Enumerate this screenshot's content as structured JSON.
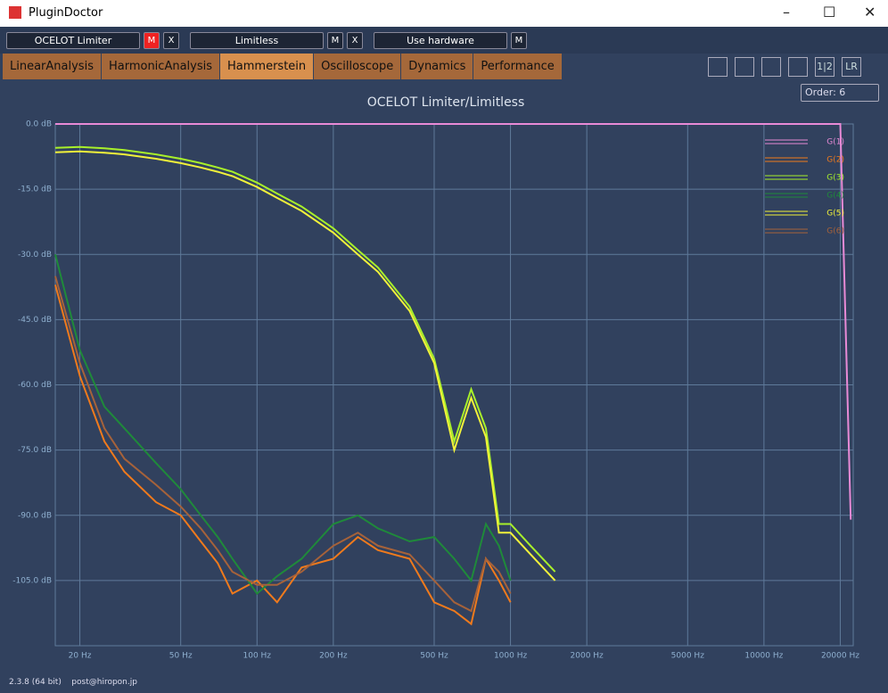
{
  "window": {
    "title": "PluginDoctor"
  },
  "toolbar": [
    {
      "label": "OCELOT Limiter",
      "buttons": [
        "M",
        "X"
      ]
    },
    {
      "label": "Limitless",
      "buttons": [
        "M",
        "X"
      ]
    },
    {
      "label": "Use hardware",
      "buttons": [
        "M"
      ]
    }
  ],
  "tabs": [
    "LinearAnalysis",
    "HarmonicAnalysis",
    "Hammerstein",
    "Oscilloscope",
    "Dynamics",
    "Performance"
  ],
  "icons": [
    "1|2",
    "LR"
  ],
  "order": "Order: 6",
  "footer": {
    "version": "2.3.8 (64 bit)",
    "email": "post@hiropon.jp"
  },
  "chart_data": {
    "type": "line",
    "title": "OCELOT Limiter/Limitless",
    "xscale": "log",
    "grid": true,
    "legend": "upper right",
    "xlim": [
      16,
      22500
    ],
    "ylim": [
      -120,
      0
    ],
    "xticks": [
      {
        "value": 20,
        "label": "20 Hz"
      },
      {
        "value": 50,
        "label": "50 Hz"
      },
      {
        "value": 100,
        "label": "100 Hz"
      },
      {
        "value": 200,
        "label": "200 Hz"
      },
      {
        "value": 500,
        "label": "500 Hz"
      },
      {
        "value": 1000,
        "label": "1000 Hz"
      },
      {
        "value": 2000,
        "label": "2000 Hz"
      },
      {
        "value": 5000,
        "label": "5000 Hz"
      },
      {
        "value": 10000,
        "label": "10000 Hz"
      },
      {
        "value": 20000,
        "label": "20000 Hz"
      }
    ],
    "yticks": [
      {
        "value": 0,
        "label": "0.0 dB"
      },
      {
        "value": -15,
        "label": "-15.0 dB"
      },
      {
        "value": -30,
        "label": "-30.0 dB"
      },
      {
        "value": -45,
        "label": "-45.0 dB"
      },
      {
        "value": -60,
        "label": "-60.0 dB"
      },
      {
        "value": -75,
        "label": "-75.0 dB"
      },
      {
        "value": -90,
        "label": "-90.0 dB"
      },
      {
        "value": -105,
        "label": "-105.0 dB"
      }
    ],
    "x": [
      16,
      20,
      25,
      30,
      40,
      50,
      60,
      70,
      80,
      100,
      120,
      150,
      200,
      250,
      300,
      400,
      500,
      600,
      700,
      800,
      900,
      1000,
      1200,
      1500,
      2000,
      3000,
      5000,
      10000,
      20000,
      22000
    ],
    "series": [
      {
        "name": "G(1)",
        "color": "#e88ad6",
        "values": [
          0,
          0,
          0,
          0,
          0,
          0,
          0,
          0,
          0,
          0,
          0,
          0,
          0,
          0,
          0,
          0,
          0,
          0,
          0,
          0,
          0,
          0,
          0,
          0,
          0,
          0,
          0,
          0,
          0,
          -91
        ]
      },
      {
        "name": "G(2)",
        "color": "#f07a1c",
        "values": [
          -37,
          -58,
          -73,
          -80,
          -87,
          -90,
          -96,
          -101,
          -108,
          -105,
          -110,
          -102,
          -100,
          -95,
          -98,
          -100,
          -110,
          -112,
          -115,
          -100,
          -105,
          -110,
          null,
          null,
          null,
          null,
          null,
          null,
          null,
          null
        ]
      },
      {
        "name": "G(3)",
        "color": "#a8f02a",
        "values": [
          -5.5,
          -5.3,
          -5.6,
          -6,
          -7,
          -8,
          -9,
          -10,
          -11,
          -13.5,
          -16,
          -19,
          -24,
          -29,
          -33,
          -42,
          -54,
          -73,
          -61,
          -70,
          -92,
          -92,
          -97,
          -103,
          null,
          null,
          null,
          null,
          null,
          null
        ]
      },
      {
        "name": "G(4)",
        "color": "#1f8a3a",
        "values": [
          -30,
          -52,
          -65,
          -70,
          -78,
          -84,
          -90,
          -95,
          -100,
          -108,
          -104,
          -100,
          -92,
          -90,
          -93,
          -96,
          -95,
          -100,
          -105,
          -92,
          -97,
          -105,
          null,
          null,
          null,
          null,
          null,
          null,
          null,
          null
        ]
      },
      {
        "name": "G(5)",
        "color": "#f2f23a",
        "values": [
          -6.5,
          -6.3,
          -6.6,
          -7,
          -8,
          -9,
          -10,
          -11,
          -12,
          -14.5,
          -17,
          -20,
          -25,
          -30,
          -34,
          -43,
          -55,
          -75,
          -63,
          -72,
          -94,
          -94,
          -99,
          -105,
          null,
          null,
          null,
          null,
          null,
          null
        ]
      },
      {
        "name": "G(6)",
        "color": "#a6623a",
        "values": [
          -35,
          -55,
          -70,
          -77,
          -83,
          -88,
          -93,
          -98,
          -103,
          -106,
          -106,
          -103,
          -97,
          -94,
          -97,
          -99,
          -105,
          -110,
          -112,
          -100,
          -103,
          -108,
          null,
          null,
          null,
          null,
          null,
          null,
          null,
          null
        ]
      }
    ]
  }
}
